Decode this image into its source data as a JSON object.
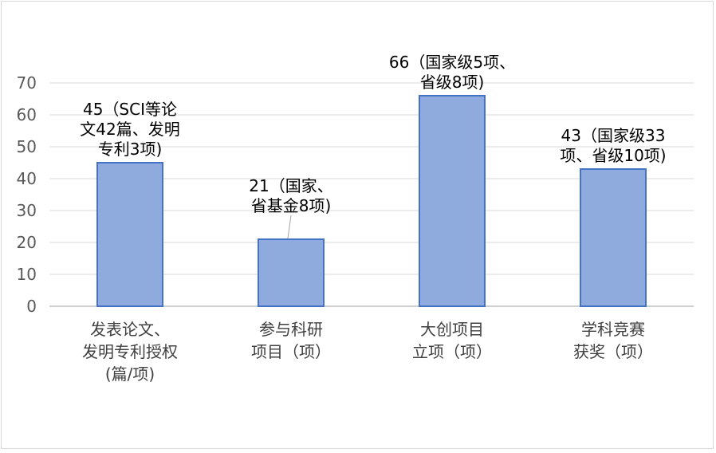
{
  "chart_data": {
    "type": "bar",
    "categories": [
      [
        "发表论文、",
        "发明专利授权",
        "(篇/项)"
      ],
      [
        "参与科研",
        "项目（项）"
      ],
      [
        "大创项目",
        "立项（项）"
      ],
      [
        "学科竞赛",
        "获奖（项）"
      ]
    ],
    "values": [
      45,
      21,
      66,
      43
    ],
    "data_labels": [
      [
        "45（SCI等论",
        "文42篇、发明",
        "专利3项)"
      ],
      [
        "21（国家、",
        "省基金8项)"
      ],
      [
        "66（国家级5项、",
        "省级8项)"
      ],
      [
        "43（国家级33",
        "项、省级10项)"
      ]
    ],
    "ylim": [
      0,
      70
    ],
    "yticks": [
      0,
      10,
      20,
      30,
      40,
      50,
      60,
      70
    ],
    "grid": true,
    "title": "",
    "xlabel": "",
    "ylabel": "",
    "colors": {
      "bar_fill": "#8faadc",
      "bar_stroke": "#4472c4",
      "grid": "#d9d9d9",
      "axis": "#bfbfbf",
      "leader": "#a6a6a6"
    }
  }
}
